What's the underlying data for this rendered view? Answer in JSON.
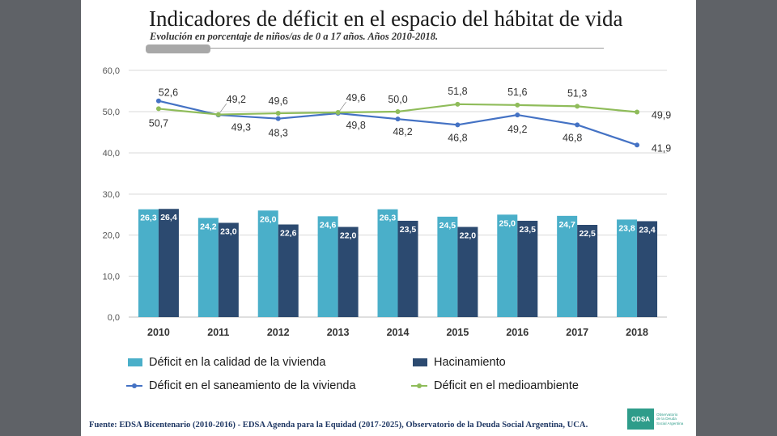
{
  "title": "Indicadores de déficit en el espacio del hábitat de vida",
  "subtitle": "Evolución en porcentaje de niños/as de 0 a 17 años. Años  2010-2018.",
  "source": "Fuente: EDSA Bicentenario (2010-2016) - EDSA Agenda para la Equidad (2017-2025), Observatorio de la Deuda Social Argentina, UCA.",
  "logo": {
    "mark": "ODSA",
    "text_lines": [
      "Observatorio",
      "de la Deuda",
      "Social Argentina"
    ]
  },
  "colors": {
    "calidad": "#4aafc9",
    "hacinamiento": "#2c4a70",
    "saneamiento": "#4472c4",
    "medioambiente": "#8fbc5a"
  },
  "chart_data": [
    {
      "type": "line",
      "categories": [
        "2010",
        "2011",
        "2012",
        "2013",
        "2014",
        "2015",
        "2016",
        "2017",
        "2018"
      ],
      "ylim": [
        40,
        60
      ],
      "ticks": [
        "40,0",
        "50,0",
        "60,0"
      ],
      "tick_values": [
        40,
        50,
        60
      ],
      "series": [
        {
          "name": "Déficit en el saneamiento de la vivienda",
          "values": [
            52.6,
            49.2,
            48.3,
            49.6,
            48.2,
            46.8,
            49.2,
            46.8,
            41.9
          ],
          "labels": [
            "52,6",
            "49,2",
            "48,3",
            "49,6",
            "48,2",
            "46,8",
            "49,2",
            "46,8",
            "41,9"
          ]
        },
        {
          "name": "Déficit en el medioambiente",
          "values": [
            50.7,
            49.3,
            49.6,
            49.8,
            50.0,
            51.8,
            51.6,
            51.3,
            49.9
          ],
          "labels": [
            "50,7",
            "49,3",
            "49,6",
            "49,8",
            "50,0",
            "51,8",
            "51,6",
            "51,3",
            "49,9"
          ]
        }
      ]
    },
    {
      "type": "bar",
      "categories": [
        "2010",
        "2011",
        "2012",
        "2013",
        "2014",
        "2015",
        "2016",
        "2017",
        "2018"
      ],
      "ylim": [
        0,
        30
      ],
      "ticks": [
        "0,0",
        "10,0",
        "20,0",
        "30,0"
      ],
      "tick_values": [
        0,
        10,
        20,
        30
      ],
      "series": [
        {
          "name": "Déficit en la calidad de la vivienda",
          "values": [
            26.3,
            24.2,
            26.0,
            24.6,
            26.3,
            24.5,
            25.0,
            24.7,
            23.8
          ],
          "labels": [
            "26,3",
            "24,2",
            "26,0",
            "24,6",
            "26,3",
            "24,5",
            "25,0",
            "24,7",
            "23,8"
          ]
        },
        {
          "name": "Hacinamiento",
          "values": [
            26.4,
            23.0,
            22.6,
            22.0,
            23.5,
            22.0,
            23.5,
            22.5,
            23.4
          ],
          "labels": [
            "26,4",
            "23,0",
            "22,6",
            "22,0",
            "23,5",
            "22,0",
            "23,5",
            "22,5",
            "23,4"
          ]
        }
      ]
    }
  ],
  "legend": {
    "calidad": "Déficit en la calidad de la vivienda",
    "hacinamiento": "Hacinamiento",
    "saneamiento": "Déficit en el saneamiento de la vivienda",
    "medioambiente": "Déficit en el medioambiente"
  }
}
